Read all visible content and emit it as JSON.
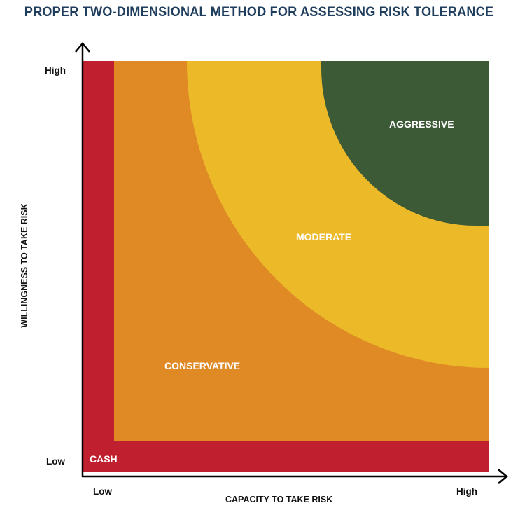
{
  "title": "PROPER TWO-DIMENSIONAL METHOD FOR ASSESSING RISK TOLERANCE",
  "y_axis": {
    "label": "WILLINGNESS TO TAKE RISK",
    "high": "High",
    "low": "Low"
  },
  "x_axis": {
    "label": "CAPACITY TO TAKE RISK",
    "low": "Low",
    "high": "High"
  },
  "zones": {
    "cash": "CASH",
    "conservative": "CONSERVATIVE",
    "moderate": "MODERATE",
    "aggressive": "AGGRESSIVE"
  },
  "colors": {
    "cash": "#c01f2f",
    "conservative": "#e08a26",
    "moderate": "#ecb928",
    "aggressive": "#3d5a37",
    "title": "#1f3d5c"
  }
}
